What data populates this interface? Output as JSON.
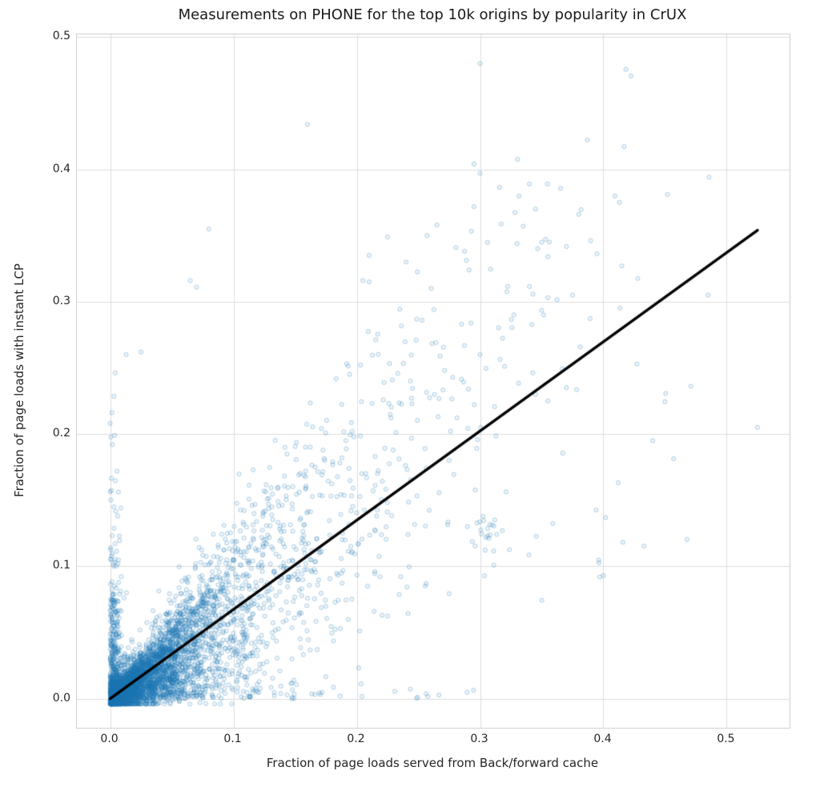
{
  "chart_data": {
    "type": "scatter",
    "title": "Measurements on PHONE for the top 10k origins by popularity in CrUX",
    "xlabel": "Fraction of page loads served from Back/forward cache",
    "ylabel": "Fraction of page loads with instant LCP",
    "xlim": [
      -0.027,
      0.551
    ],
    "ylim": [
      -0.022,
      0.502
    ],
    "xticks": [
      0.0,
      0.1,
      0.2,
      0.3,
      0.4,
      0.5
    ],
    "yticks": [
      0.0,
      0.1,
      0.2,
      0.3,
      0.4,
      0.5
    ],
    "xtick_labels": [
      "0.0",
      "0.1",
      "0.2",
      "0.3",
      "0.4",
      "0.5"
    ],
    "ytick_labels": [
      "0.0",
      "0.1",
      "0.2",
      "0.3",
      "0.4",
      "0.5"
    ],
    "grid": true,
    "grid_color": "#dcdcdc",
    "background": "#ffffff",
    "text_color": "#262626",
    "point_style": {
      "color": "#1f77b4",
      "fill_alpha": 0.08,
      "edge_alpha": 0.3,
      "radius": 2.6
    },
    "trendline": {
      "x": [
        0.0,
        0.525
      ],
      "y": [
        0.0,
        0.354
      ],
      "color": "#000000",
      "width": 3.5
    },
    "seed": 20240,
    "generators": [
      {
        "type": "core",
        "count": 3000,
        "x_mean": 0.032,
        "x_max": 0.45,
        "f_min": 0.1,
        "f_max": 1.6,
        "noise_sd": 0.006
      },
      {
        "type": "core",
        "count": 900,
        "x_mean": 0.1,
        "x_max": 0.5,
        "f_min": 0.3,
        "f_max": 1.9,
        "noise_sd": 0.015
      },
      {
        "type": "upper",
        "count": 450,
        "x_offset": 0.04,
        "x_mean": 0.1,
        "x_max": 0.48,
        "f_base": 0.55,
        "f_range": 1.25,
        "noise_sd": 0.02,
        "y_max": 0.4
      },
      {
        "type": "strip_v",
        "count": 350,
        "x_sd": 0.005,
        "y_mean": 0.045,
        "y_max": 0.27
      },
      {
        "type": "strip_h",
        "count": 250,
        "x_mean": 0.06,
        "x_max": 0.3,
        "y_sd": 0.006
      },
      {
        "type": "cluster",
        "count": 16,
        "cx": 0.305,
        "cy": 0.128,
        "sd": 0.005
      }
    ],
    "outlier_points": [
      [
        0.3,
        0.48
      ],
      [
        0.16,
        0.434
      ],
      [
        0.295,
        0.404
      ],
      [
        0.3,
        0.397
      ],
      [
        0.34,
        0.389
      ],
      [
        0.452,
        0.381
      ],
      [
        0.413,
        0.375
      ],
      [
        0.38,
        0.366
      ],
      [
        0.335,
        0.357
      ],
      [
        0.265,
        0.358
      ],
      [
        0.08,
        0.355
      ],
      [
        0.35,
        0.345
      ],
      [
        0.33,
        0.344
      ],
      [
        0.355,
        0.334
      ],
      [
        0.415,
        0.327
      ],
      [
        0.24,
        0.33
      ],
      [
        0.21,
        0.335
      ],
      [
        0.225,
        0.349
      ],
      [
        0.257,
        0.35
      ],
      [
        0.065,
        0.316
      ],
      [
        0.07,
        0.311
      ],
      [
        0.21,
        0.315
      ],
      [
        0.205,
        0.316
      ],
      [
        0.485,
        0.305
      ],
      [
        0.375,
        0.305
      ],
      [
        0.355,
        0.303
      ],
      [
        0.525,
        0.205
      ],
      [
        0.44,
        0.195
      ],
      [
        0.3,
        0.26
      ],
      [
        0.285,
        0.283
      ],
      [
        0.253,
        0.286
      ],
      [
        0.013,
        0.26
      ],
      [
        0.025,
        0.262
      ],
      [
        0.0,
        0.208
      ],
      [
        0.003,
        0.145
      ],
      [
        0.4,
        0.093
      ],
      [
        0.397,
        0.092
      ],
      [
        0.345,
        0.23
      ],
      [
        0.355,
        0.225
      ],
      [
        0.37,
        0.235
      ]
    ]
  }
}
